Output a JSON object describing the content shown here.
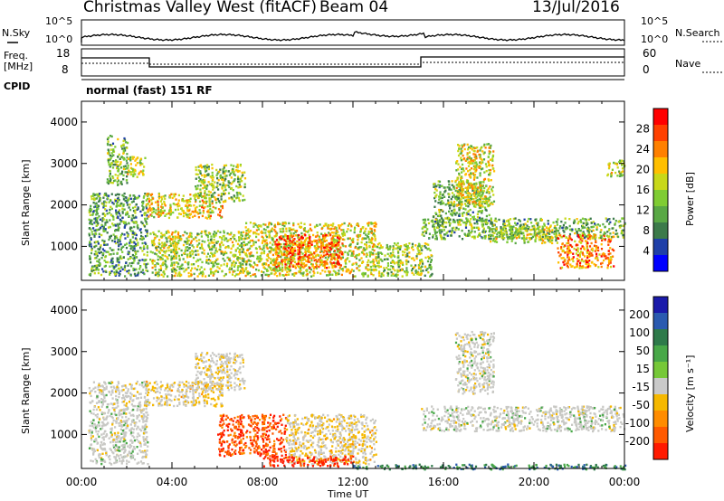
{
  "header": {
    "title": "Christmas Valley West (fitACF)",
    "beam": "Beam 04",
    "date": "13/Jul/2016"
  },
  "summary": {
    "nsky_label": "N.Sky",
    "nsky_ticks": [
      "10^5",
      "10^0"
    ],
    "nsearch_label": "N.Search",
    "nsearch_ticks": [
      "10^5",
      "10^0"
    ],
    "freq_label": "Freq.",
    "freq_unit": "[MHz]",
    "freq_ticks": [
      "18",
      "8"
    ],
    "nave_label": "Nave",
    "nave_ticks": [
      "60",
      "0"
    ],
    "cpid_label": "CPID",
    "cpid_value": "normal (fast) 151 RF"
  },
  "colors": {
    "power": [
      "#0000ff",
      "#1f3fa8",
      "#3c7a4a",
      "#59a845",
      "#7fcc33",
      "#c8d819",
      "#ffbf00",
      "#ff8000",
      "#ff4000",
      "#ff0000"
    ],
    "velocity": [
      "#1a1aaa",
      "#2a5ab0",
      "#2e7a4a",
      "#48a848",
      "#76c838",
      "#c9c9c9",
      "#f5b800",
      "#ff8c00",
      "#ff5a00",
      "#ff1a00"
    ],
    "velocity_near_zero": "#c8c8c4"
  },
  "chart_data": [
    {
      "type": "heatmap",
      "name": "Power",
      "ylabel": "Slant Range [km]",
      "xlabel": "Time UT",
      "xticks": [
        "00:00",
        "04:00",
        "08:00",
        "12:00",
        "16:00",
        "20:00",
        "00:00"
      ],
      "yticks": [
        "1000",
        "2000",
        "3000",
        "4000"
      ],
      "ylim": [
        180,
        4500
      ],
      "xlim_hours": [
        0,
        24
      ],
      "colorbar_label": "Power [dB]",
      "colorbar_ticks": [
        "4",
        "8",
        "12",
        "16",
        "20",
        "24",
        "28"
      ],
      "colorbar_range": [
        0,
        30
      ],
      "regions": [
        {
          "t0": 0.3,
          "t1": 2.9,
          "r0": 300,
          "r1": 2300,
          "level": 0.35
        },
        {
          "t0": 1.1,
          "t1": 2.0,
          "r0": 2500,
          "r1": 3700,
          "level": 0.4
        },
        {
          "t0": 2.0,
          "t1": 2.8,
          "r0": 2700,
          "r1": 3200,
          "level": 0.55
        },
        {
          "t0": 2.8,
          "t1": 6.2,
          "r0": 1700,
          "r1": 2300,
          "level": 0.6
        },
        {
          "t0": 5.0,
          "t1": 7.2,
          "r0": 2100,
          "r1": 3000,
          "level": 0.45
        },
        {
          "t0": 3.0,
          "t1": 7.5,
          "r0": 300,
          "r1": 1400,
          "level": 0.5
        },
        {
          "t0": 7.2,
          "t1": 13.0,
          "r0": 300,
          "r1": 1600,
          "level": 0.55
        },
        {
          "t0": 8.5,
          "t1": 11.5,
          "r0": 500,
          "r1": 1300,
          "level": 0.8
        },
        {
          "t0": 13.0,
          "t1": 15.5,
          "r0": 300,
          "r1": 1100,
          "level": 0.45
        },
        {
          "t0": 15.0,
          "t1": 24.0,
          "r0": 1200,
          "r1": 1700,
          "level": 0.4
        },
        {
          "t0": 15.5,
          "t1": 18.0,
          "r0": 1600,
          "r1": 2600,
          "level": 0.4
        },
        {
          "t0": 16.5,
          "t1": 18.2,
          "r0": 2000,
          "r1": 3500,
          "level": 0.55
        },
        {
          "t0": 18.0,
          "t1": 21.0,
          "r0": 1100,
          "r1": 1500,
          "level": 0.5
        },
        {
          "t0": 21.0,
          "t1": 23.5,
          "r0": 500,
          "r1": 1300,
          "level": 0.75
        },
        {
          "t0": 23.2,
          "t1": 24.0,
          "r0": 2700,
          "r1": 3100,
          "level": 0.55
        }
      ]
    },
    {
      "type": "heatmap",
      "name": "Velocity",
      "ylabel": "Slant Range [km]",
      "xlabel": "Time UT",
      "xticks": [
        "00:00",
        "04:00",
        "08:00",
        "12:00",
        "16:00",
        "20:00",
        "00:00"
      ],
      "yticks": [
        "1000",
        "2000",
        "3000",
        "4000"
      ],
      "ylim": [
        180,
        4500
      ],
      "xlim_hours": [
        0,
        24
      ],
      "colorbar_label": "Velocity [m s⁻¹]",
      "colorbar_ticks": [
        "200",
        "100",
        "50",
        "15",
        "-15",
        "-50",
        "-100",
        "-200"
      ],
      "colorbar_range": [
        -250,
        250
      ],
      "regions": [
        {
          "t0": 0.3,
          "t1": 2.9,
          "r0": 300,
          "r1": 2300,
          "level": 0.0
        },
        {
          "t0": 2.8,
          "t1": 6.2,
          "r0": 1700,
          "r1": 2300,
          "level": -0.1
        },
        {
          "t0": 5.0,
          "t1": 7.2,
          "r0": 2100,
          "r1": 3000,
          "level": -0.05
        },
        {
          "t0": 6.0,
          "t1": 9.0,
          "r0": 500,
          "r1": 1500,
          "level": -0.45
        },
        {
          "t0": 9.0,
          "t1": 13.0,
          "r0": 300,
          "r1": 1500,
          "level": -0.1
        },
        {
          "t0": 8.0,
          "t1": 12.0,
          "r0": 250,
          "r1": 500,
          "level": -0.55
        },
        {
          "t0": 15.0,
          "t1": 24.0,
          "r0": 1100,
          "r1": 1700,
          "level": 0.0
        },
        {
          "t0": 16.5,
          "t1": 18.2,
          "r0": 2000,
          "r1": 3500,
          "level": 0.0
        },
        {
          "t0": 12.0,
          "t1": 24.0,
          "r0": 180,
          "r1": 300,
          "level": 0.3
        }
      ]
    }
  ]
}
